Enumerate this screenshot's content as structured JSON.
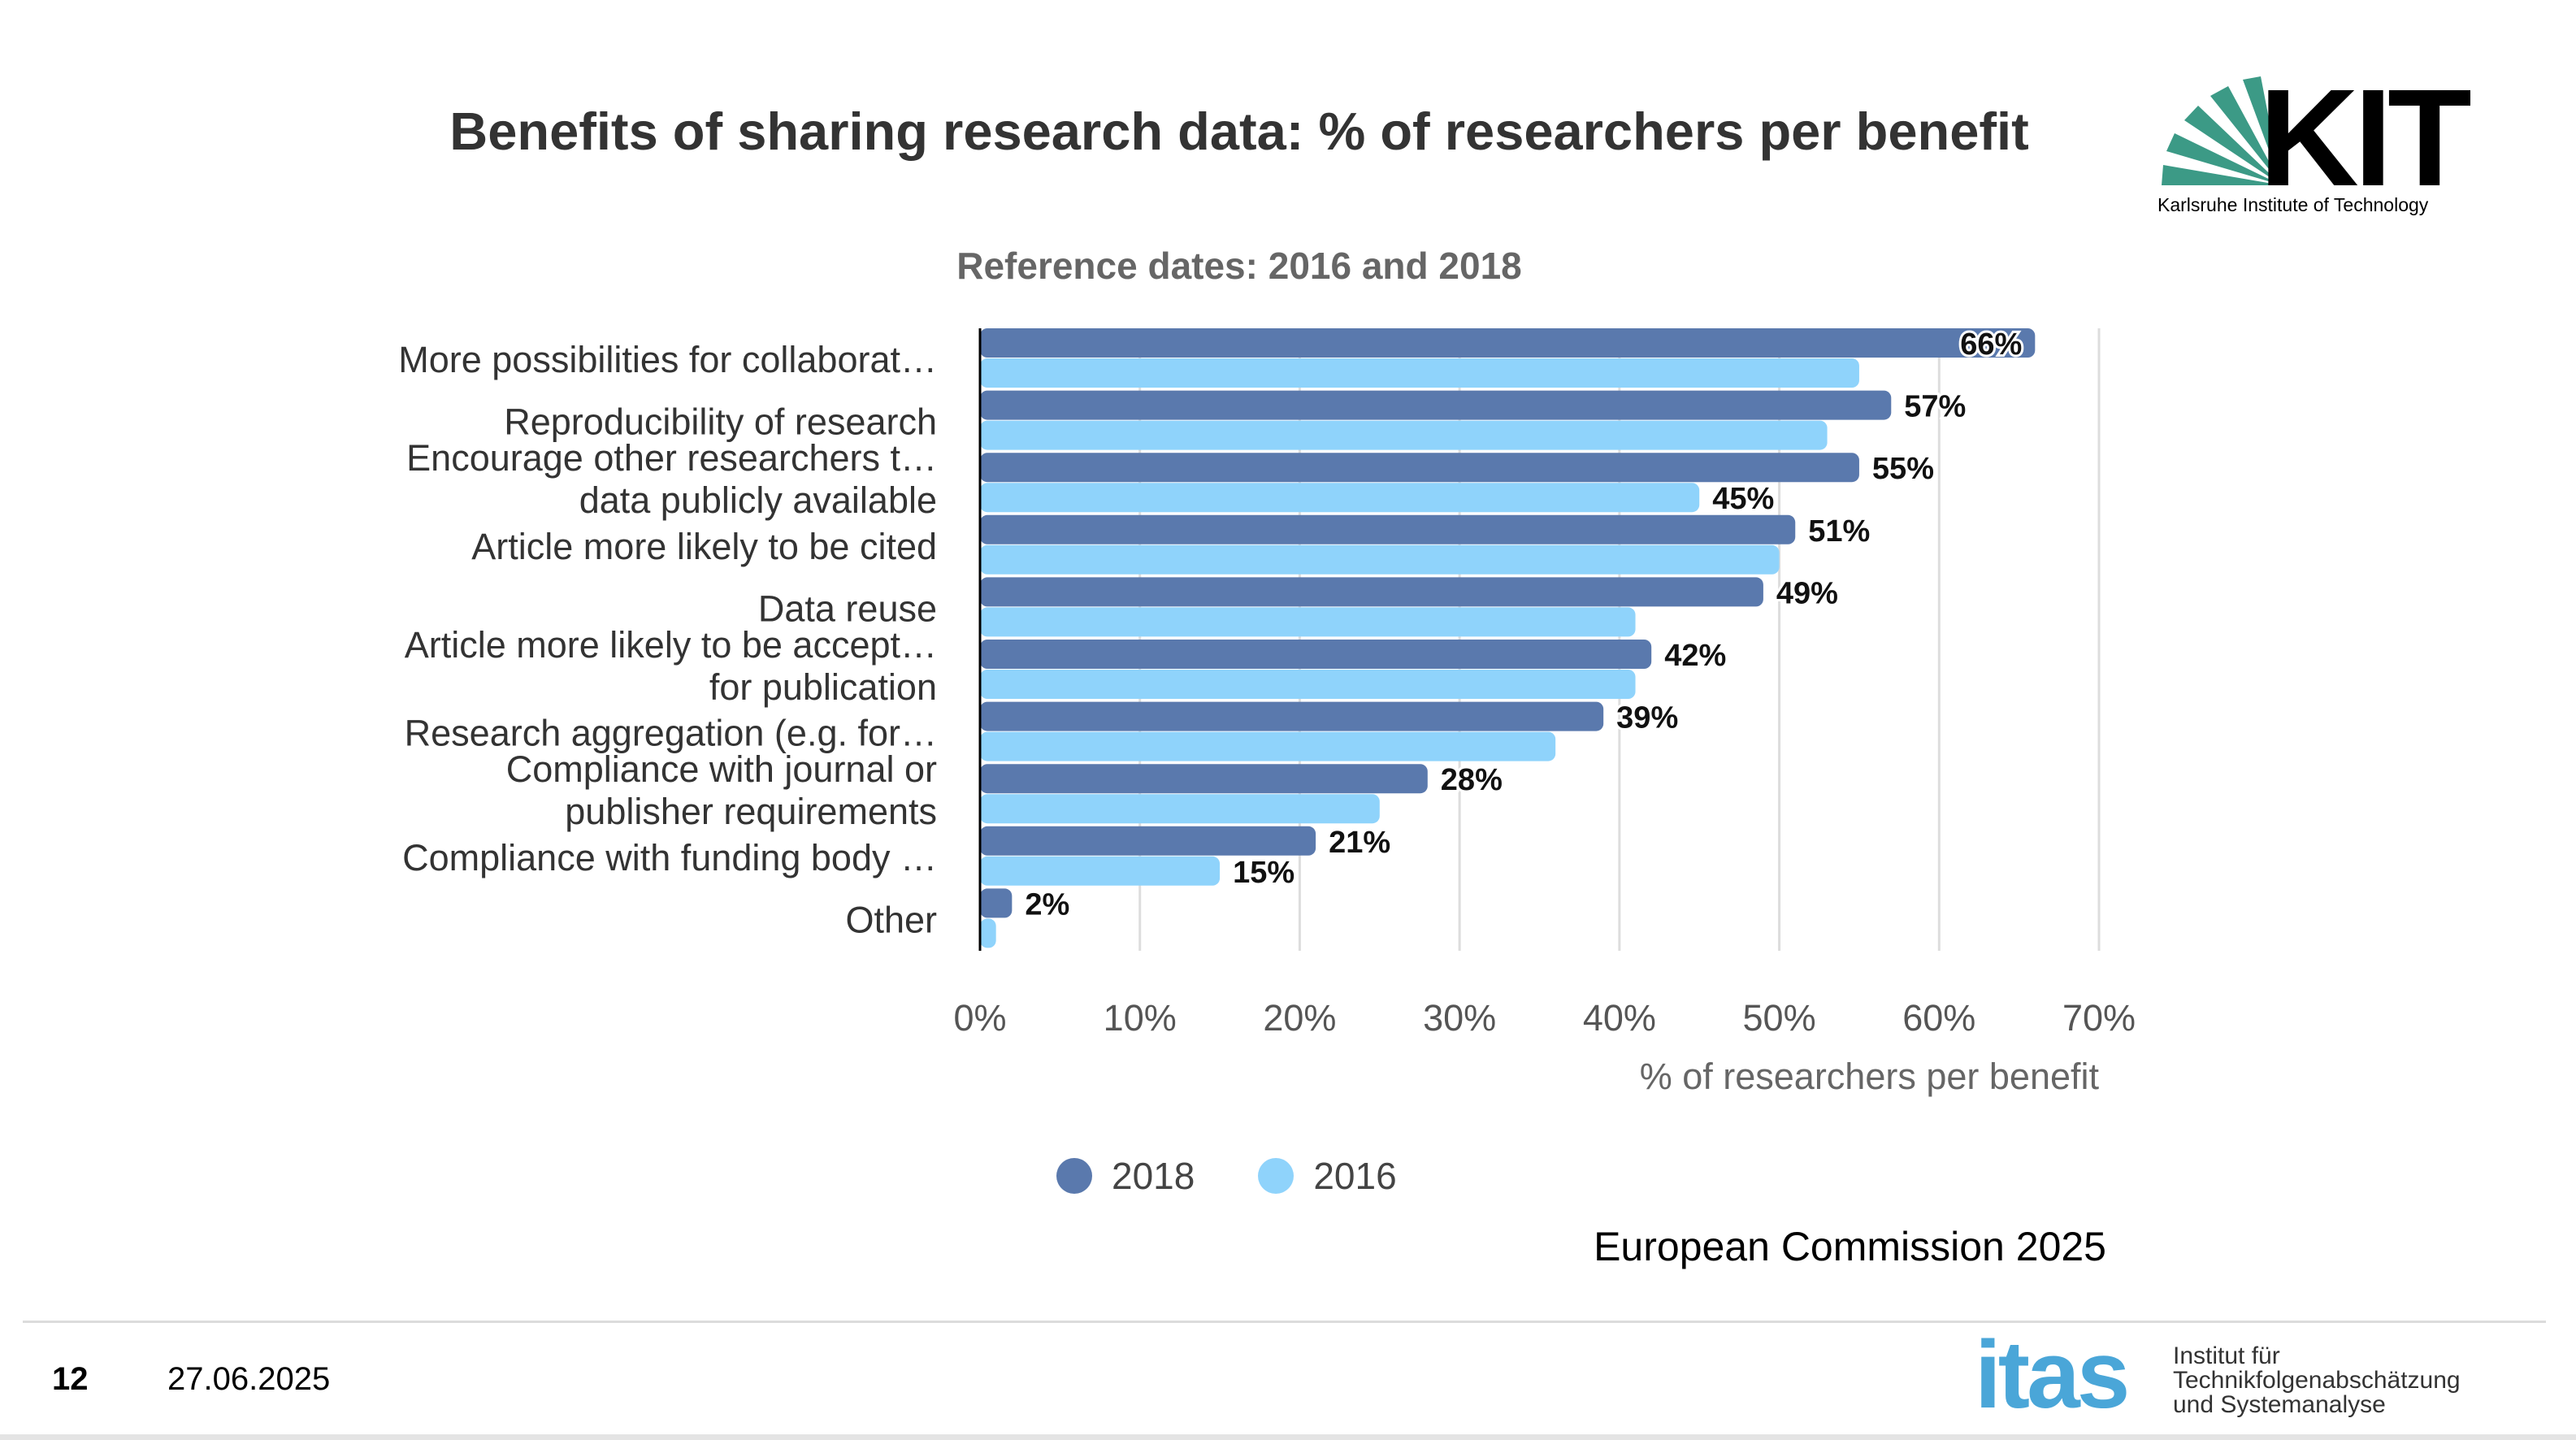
{
  "chart_data": {
    "type": "bar",
    "orientation": "horizontal",
    "title": "Benefits of sharing research data: % of researchers per benefit",
    "subtitle": "Reference dates: 2016 and 2018",
    "xlabel": "% of researchers per benefit",
    "ylabel": "",
    "xlim": [
      0,
      70
    ],
    "x_ticks": [
      0,
      10,
      20,
      30,
      40,
      50,
      60,
      70
    ],
    "tick_suffix": "%",
    "grid": true,
    "legend_position": "bottom",
    "categories": [
      [
        "More possibilities for collaborat…"
      ],
      [
        "Reproducibility of research"
      ],
      [
        "Encourage other researchers t…",
        "data publicly available"
      ],
      [
        "Article more likely to be cited"
      ],
      [
        "Data reuse"
      ],
      [
        "Article more likely to be accept…",
        "for publication"
      ],
      [
        "Research aggregation (e.g. for…"
      ],
      [
        "Compliance with journal or",
        "publisher requirements"
      ],
      [
        "Compliance with funding body …"
      ],
      [
        "Other"
      ]
    ],
    "series": [
      {
        "name": "2018",
        "color": "#5a79ad",
        "values": [
          66,
          57,
          55,
          51,
          49,
          42,
          39,
          28,
          21,
          2
        ],
        "labels": [
          "66%",
          "57%",
          "55%",
          "51%",
          "49%",
          "42%",
          "39%",
          "28%",
          "21%",
          "2%"
        ]
      },
      {
        "name": "2016",
        "color": "#8fd3fb",
        "values": [
          55,
          53,
          45,
          50,
          41,
          41,
          36,
          25,
          15,
          1
        ],
        "labels": [
          "",
          "",
          "45%",
          "",
          "",
          "",
          "",
          "",
          "15%",
          ""
        ]
      }
    ]
  },
  "source": "European Commission 2025",
  "footer": {
    "page_number": "12",
    "date": "27.06.2025"
  },
  "logos": {
    "kit_text": "KIT",
    "kit_caption": "Karlsruhe Institute of Technology",
    "itas_text": "itas",
    "itas_caption": [
      "Institut für",
      "Technikfolgenabschätzung",
      "und Systemanalyse"
    ]
  }
}
